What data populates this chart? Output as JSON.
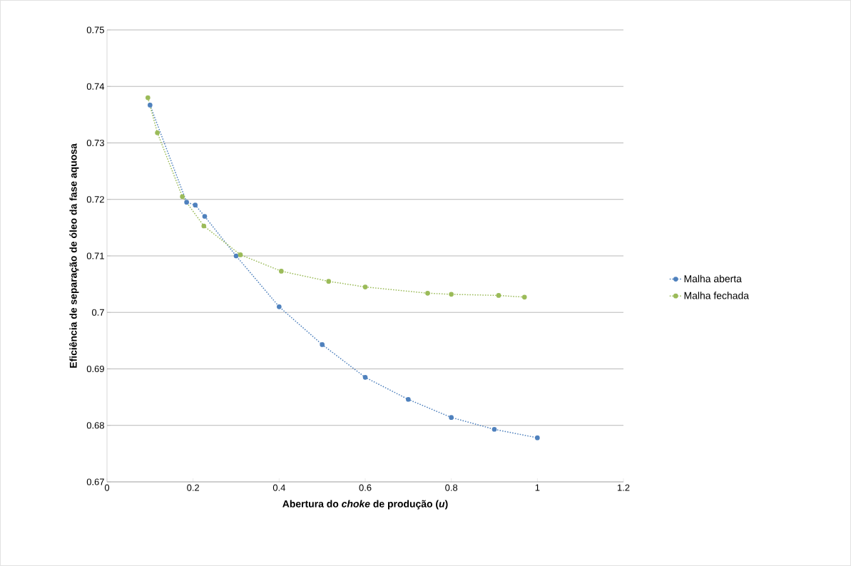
{
  "chart_data": {
    "type": "line",
    "xlabel": "Abertura do *choke* de produção (*u*)",
    "ylabel": "Eficiência de separação de óleo da fase aquosa",
    "series": [
      {
        "name": "Malha aberta",
        "color": "#4f81bd",
        "x": [
          0.1,
          0.185,
          0.205,
          0.227,
          0.3,
          0.4,
          0.5,
          0.6,
          0.7,
          0.8,
          0.9,
          1.0
        ],
        "values": [
          0.7367,
          0.7195,
          0.719,
          0.717,
          0.71,
          0.701,
          0.6943,
          0.6885,
          0.6846,
          0.6814,
          0.6793,
          0.6778
        ]
      },
      {
        "name": "Malha fechada",
        "color": "#9bbb59",
        "x": [
          0.095,
          0.117,
          0.175,
          0.225,
          0.31,
          0.405,
          0.515,
          0.6,
          0.745,
          0.8,
          0.91,
          0.97
        ],
        "values": [
          0.738,
          0.7318,
          0.7205,
          0.7153,
          0.7102,
          0.7073,
          0.7055,
          0.7045,
          0.7034,
          0.7032,
          0.703,
          0.7027
        ]
      }
    ],
    "xlim": [
      0,
      1.2
    ],
    "ylim": [
      0.67,
      0.75
    ],
    "xticks": [
      0,
      0.2,
      0.4,
      0.6,
      0.8,
      1,
      1.2
    ],
    "yticks": [
      0.67,
      0.68,
      0.69,
      0.7,
      0.71,
      0.72,
      0.73,
      0.74,
      0.75
    ],
    "grid": "y",
    "legend": "right",
    "marker": "circle",
    "line_style": "dotted"
  }
}
